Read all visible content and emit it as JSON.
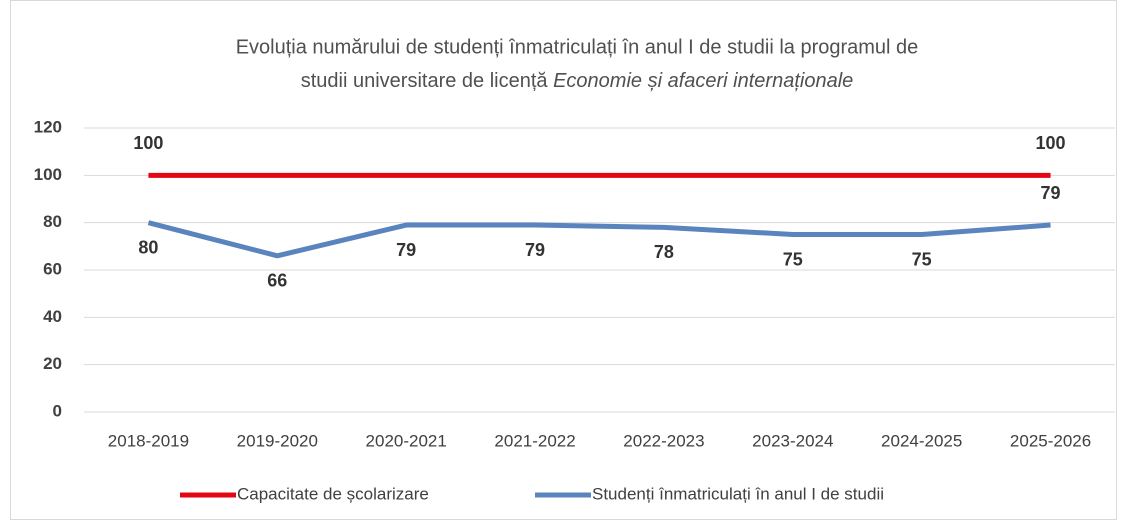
{
  "chart_data": {
    "type": "line",
    "title": [
      "Evoluția numărului de studenți înmatriculați în anul I de studii la programul de",
      "studii universitare de licență "
    ],
    "title_italic": "Economie și afaceri internaționale",
    "categories": [
      "2018-2019",
      "2019-2020",
      "2020-2021",
      "2021-2022",
      "2022-2023",
      "2023-2024",
      "2024-2025",
      "2025-2026"
    ],
    "series": [
      {
        "name": "Capacitate de școlarizare",
        "color": "#e30613",
        "values": [
          100,
          100,
          100,
          100,
          100,
          100,
          100,
          100
        ],
        "label_indices": [
          0,
          7
        ],
        "label_position": "above"
      },
      {
        "name": "Studenți înmatriculați în anul I de studii",
        "color": "#5a84bd",
        "values": [
          80,
          66,
          79,
          79,
          78,
          75,
          75,
          79
        ],
        "label_indices": [
          0,
          1,
          2,
          3,
          4,
          5,
          6,
          7
        ],
        "label_position": "below"
      }
    ],
    "ylim": [
      0,
      120
    ],
    "yticks": [
      0,
      20,
      40,
      60,
      80,
      100,
      120
    ],
    "grid": true,
    "legend": "bottom"
  }
}
